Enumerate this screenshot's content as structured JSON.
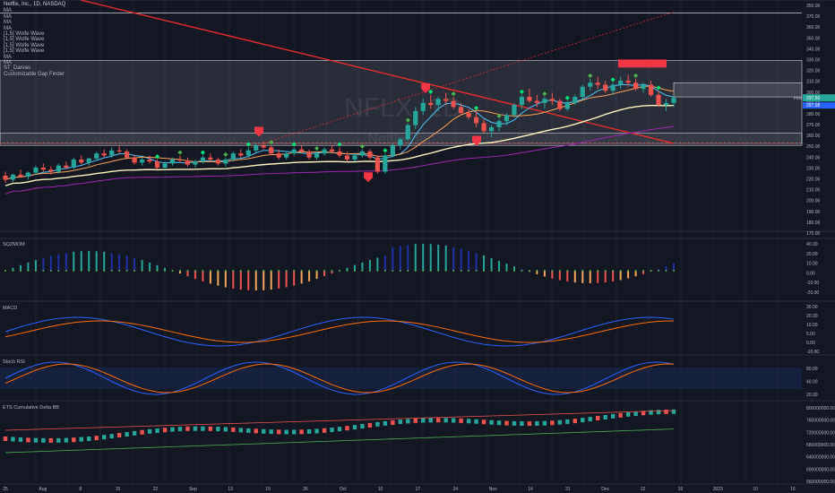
{
  "header": {
    "symbol_line": "Netflix, Inc., 1D, NASDAQ",
    "indicators": [
      "MA",
      "MA",
      "MA",
      "MA",
      "[1,5] Wolfe Wave",
      "[1,5] Wolfe Wave",
      "[1,5] Wolfe Wave",
      "[1,5] Wolfe Wave",
      "MA",
      "MA",
      "ST_Darvas",
      "Customizable Gap Finder"
    ]
  },
  "watermark": {
    "ticker": "NFLX, 1D",
    "name": "Netflix, Inc."
  },
  "panes": {
    "price": {
      "axis_labels": [
        "350.00",
        "370.00",
        "360.00",
        "350.00",
        "340.00",
        "330.00",
        "320.00",
        "310.00",
        "300.00",
        "290.00",
        "280.00",
        "270.00",
        "260.00",
        "250.00",
        "240.00",
        "230.00",
        "220.00",
        "210.00",
        "200.00",
        "190.00",
        "180.00",
        "170.00"
      ],
      "last_price_badge": "297.50",
      "last_price_sub": "297.98",
      "post_label": "Post"
    },
    "squeeze": {
      "label": "SQZMOM",
      "axis_labels": [
        "40.00",
        "20.00",
        "10.00",
        "0.00",
        "-10.00",
        "-20.00"
      ]
    },
    "macd": {
      "label": "MACD",
      "axis_labels": [
        "30.00",
        "20.00",
        "10.00",
        "5.00",
        "0.00",
        "-10.00"
      ]
    },
    "stoch": {
      "label": "Stoch RSI",
      "axis_labels": [
        "80.00",
        "40.00",
        "20.00"
      ]
    },
    "delta": {
      "label": "ETS Cumulative Delta BB",
      "axis_labels": [
        "800000000.00",
        "760000000.00",
        "720000000.00",
        "680000000.00",
        "640000000.00",
        "600000000.00",
        "560000000.00"
      ]
    }
  },
  "x_axis": {
    "labels": [
      "25",
      "Aug",
      "8",
      "15",
      "22",
      "Sep",
      "13",
      "19",
      "26",
      "Oct",
      "10",
      "17",
      "24",
      "Nov",
      "14",
      "21",
      "Dec",
      "12",
      "19",
      "2023",
      "10",
      "16"
    ]
  },
  "colors": {
    "background": "#131722",
    "up": "#26a69a",
    "down": "#ef5350",
    "ma_yellow": "#f4d35e",
    "ma_white": "#fff6c2",
    "ma_orange": "#f7a35c",
    "red_line": "#e52b2b",
    "magenta": "#9c27b0",
    "blue_hist": "#1f2fa8",
    "green_hist": "#26a69a",
    "grid": "#1e2230"
  },
  "icons": {
    "markers": [
      "red-flag-icon",
      "green-diamond-icon",
      "red-diamond-icon"
    ]
  },
  "chart_data": {
    "type": "candlestick",
    "title": "Netflix, Inc., 1D, NASDAQ",
    "ylim": [
      165,
      385
    ],
    "ohlc": [
      [
        220,
        224,
        213,
        216
      ],
      [
        216,
        222,
        214,
        221
      ],
      [
        221,
        226,
        218,
        219
      ],
      [
        219,
        224,
        216,
        223
      ],
      [
        223,
        230,
        221,
        228
      ],
      [
        228,
        232,
        224,
        226
      ],
      [
        226,
        229,
        221,
        224
      ],
      [
        224,
        232,
        222,
        230
      ],
      [
        230,
        234,
        226,
        228
      ],
      [
        228,
        238,
        226,
        236
      ],
      [
        236,
        240,
        231,
        233
      ],
      [
        233,
        238,
        230,
        237
      ],
      [
        237,
        244,
        235,
        242
      ],
      [
        242,
        246,
        238,
        240
      ],
      [
        240,
        248,
        238,
        245
      ],
      [
        245,
        250,
        242,
        244
      ],
      [
        244,
        246,
        236,
        238
      ],
      [
        238,
        240,
        231,
        233
      ],
      [
        233,
        238,
        230,
        236
      ],
      [
        236,
        240,
        232,
        234
      ],
      [
        234,
        236,
        226,
        228
      ],
      [
        228,
        234,
        226,
        232
      ],
      [
        232,
        238,
        230,
        236
      ],
      [
        236,
        240,
        233,
        235
      ],
      [
        235,
        238,
        229,
        231
      ],
      [
        231,
        236,
        228,
        234
      ],
      [
        234,
        240,
        232,
        238
      ],
      [
        238,
        242,
        234,
        236
      ],
      [
        236,
        238,
        230,
        232
      ],
      [
        232,
        238,
        229,
        236
      ],
      [
        236,
        244,
        234,
        242
      ],
      [
        242,
        246,
        238,
        240
      ],
      [
        240,
        248,
        238,
        245
      ],
      [
        245,
        252,
        243,
        250
      ],
      [
        250,
        254,
        246,
        248
      ],
      [
        248,
        250,
        240,
        242
      ],
      [
        242,
        246,
        236,
        238
      ],
      [
        238,
        244,
        236,
        242
      ],
      [
        242,
        248,
        240,
        246
      ],
      [
        246,
        250,
        242,
        244
      ],
      [
        244,
        246,
        236,
        238
      ],
      [
        238,
        244,
        236,
        242
      ],
      [
        242,
        248,
        240,
        246
      ],
      [
        246,
        250,
        242,
        244
      ],
      [
        244,
        248,
        238,
        240
      ],
      [
        240,
        244,
        234,
        236
      ],
      [
        236,
        242,
        234,
        240
      ],
      [
        240,
        246,
        238,
        244
      ],
      [
        244,
        246,
        236,
        238
      ],
      [
        238,
        240,
        222,
        224
      ],
      [
        224,
        242,
        222,
        240
      ],
      [
        240,
        252,
        238,
        250
      ],
      [
        250,
        258,
        246,
        256
      ],
      [
        256,
        272,
        254,
        270
      ],
      [
        270,
        288,
        266,
        284
      ],
      [
        284,
        296,
        280,
        292
      ],
      [
        292,
        300,
        286,
        290
      ],
      [
        290,
        298,
        284,
        296
      ],
      [
        296,
        302,
        290,
        294
      ],
      [
        294,
        298,
        286,
        288
      ],
      [
        288,
        292,
        280,
        282
      ],
      [
        282,
        286,
        276,
        278
      ],
      [
        278,
        284,
        268,
        272
      ],
      [
        272,
        276,
        262,
        264
      ],
      [
        264,
        270,
        258,
        268
      ],
      [
        268,
        276,
        264,
        274
      ],
      [
        274,
        282,
        270,
        280
      ],
      [
        280,
        292,
        278,
        290
      ],
      [
        290,
        300,
        286,
        298
      ],
      [
        298,
        306,
        292,
        294
      ],
      [
        294,
        300,
        288,
        292
      ],
      [
        292,
        298,
        286,
        296
      ],
      [
        296,
        302,
        290,
        294
      ],
      [
        294,
        296,
        284,
        286
      ],
      [
        286,
        294,
        284,
        292
      ],
      [
        292,
        300,
        290,
        298
      ],
      [
        298,
        310,
        296,
        308
      ],
      [
        308,
        316,
        304,
        312
      ],
      [
        312,
        318,
        306,
        310
      ],
      [
        310,
        314,
        302,
        304
      ],
      [
        304,
        312,
        300,
        310
      ],
      [
        310,
        318,
        306,
        314
      ],
      [
        314,
        320,
        308,
        312
      ],
      [
        312,
        316,
        304,
        306
      ],
      [
        306,
        312,
        302,
        310
      ],
      [
        310,
        314,
        298,
        300
      ],
      [
        300,
        304,
        288,
        290
      ],
      [
        290,
        296,
        284,
        292
      ],
      [
        292,
        298,
        288,
        297
      ]
    ]
  }
}
